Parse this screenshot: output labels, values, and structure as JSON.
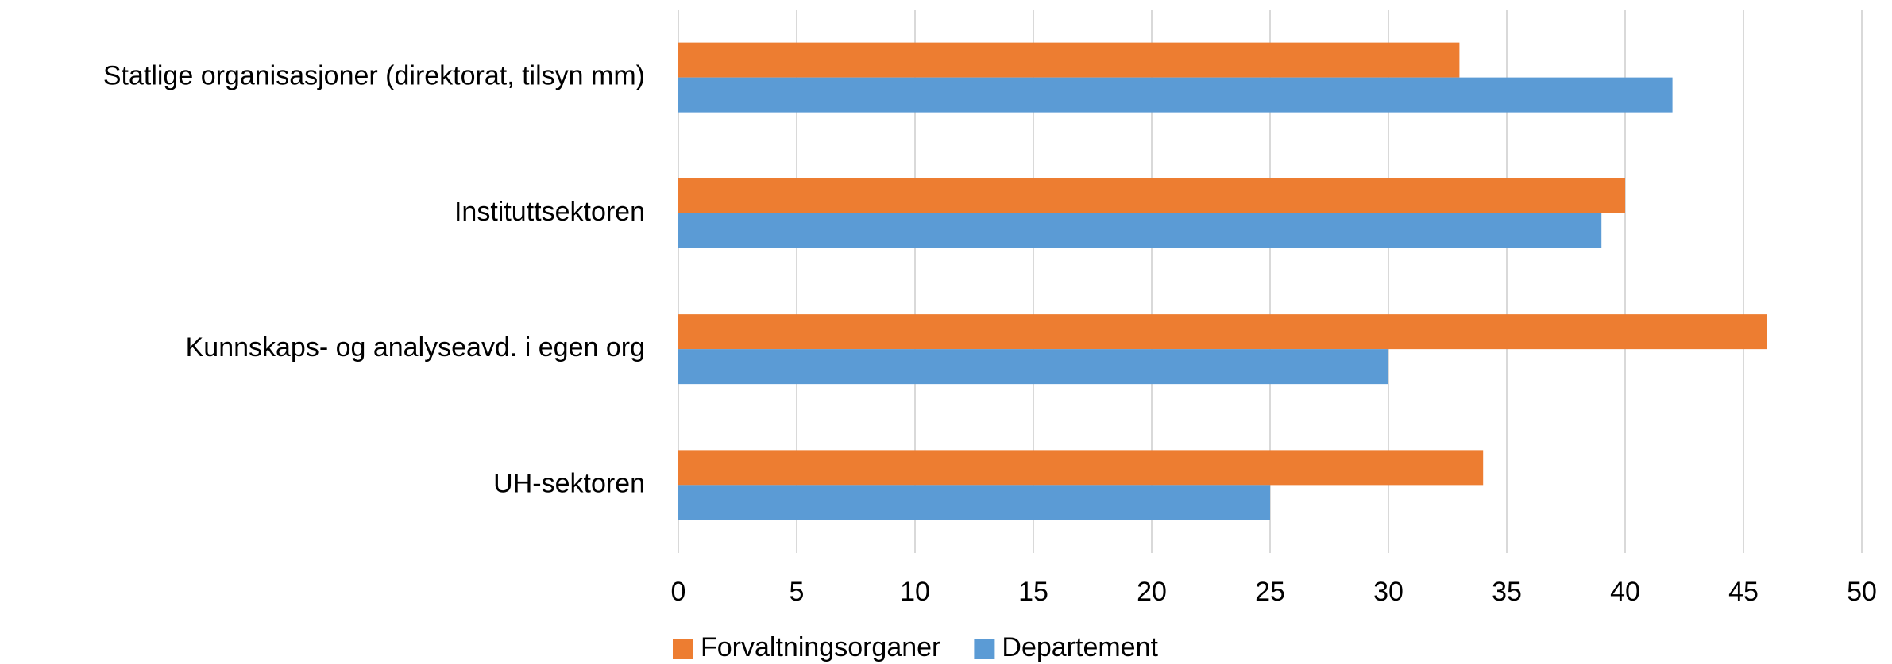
{
  "chart_data": {
    "type": "bar",
    "orientation": "horizontal",
    "categories": [
      "Statlige organisasjoner (direktorat, tilsyn mm)",
      "Instituttsektoren",
      "Kunnskaps- og analyseavd. i egen org",
      "UH-sektoren"
    ],
    "series": [
      {
        "name": "Forvaltningsorganer",
        "color": "#ED7D31",
        "values": [
          33,
          40,
          46,
          34
        ]
      },
      {
        "name": "Departement",
        "color": "#5B9BD5",
        "values": [
          42,
          39,
          30,
          25
        ]
      }
    ],
    "xlim": [
      0,
      50
    ],
    "xticks": [
      0,
      5,
      10,
      15,
      20,
      25,
      30,
      35,
      40,
      45,
      50
    ],
    "grid": true,
    "legend": "bottom"
  }
}
